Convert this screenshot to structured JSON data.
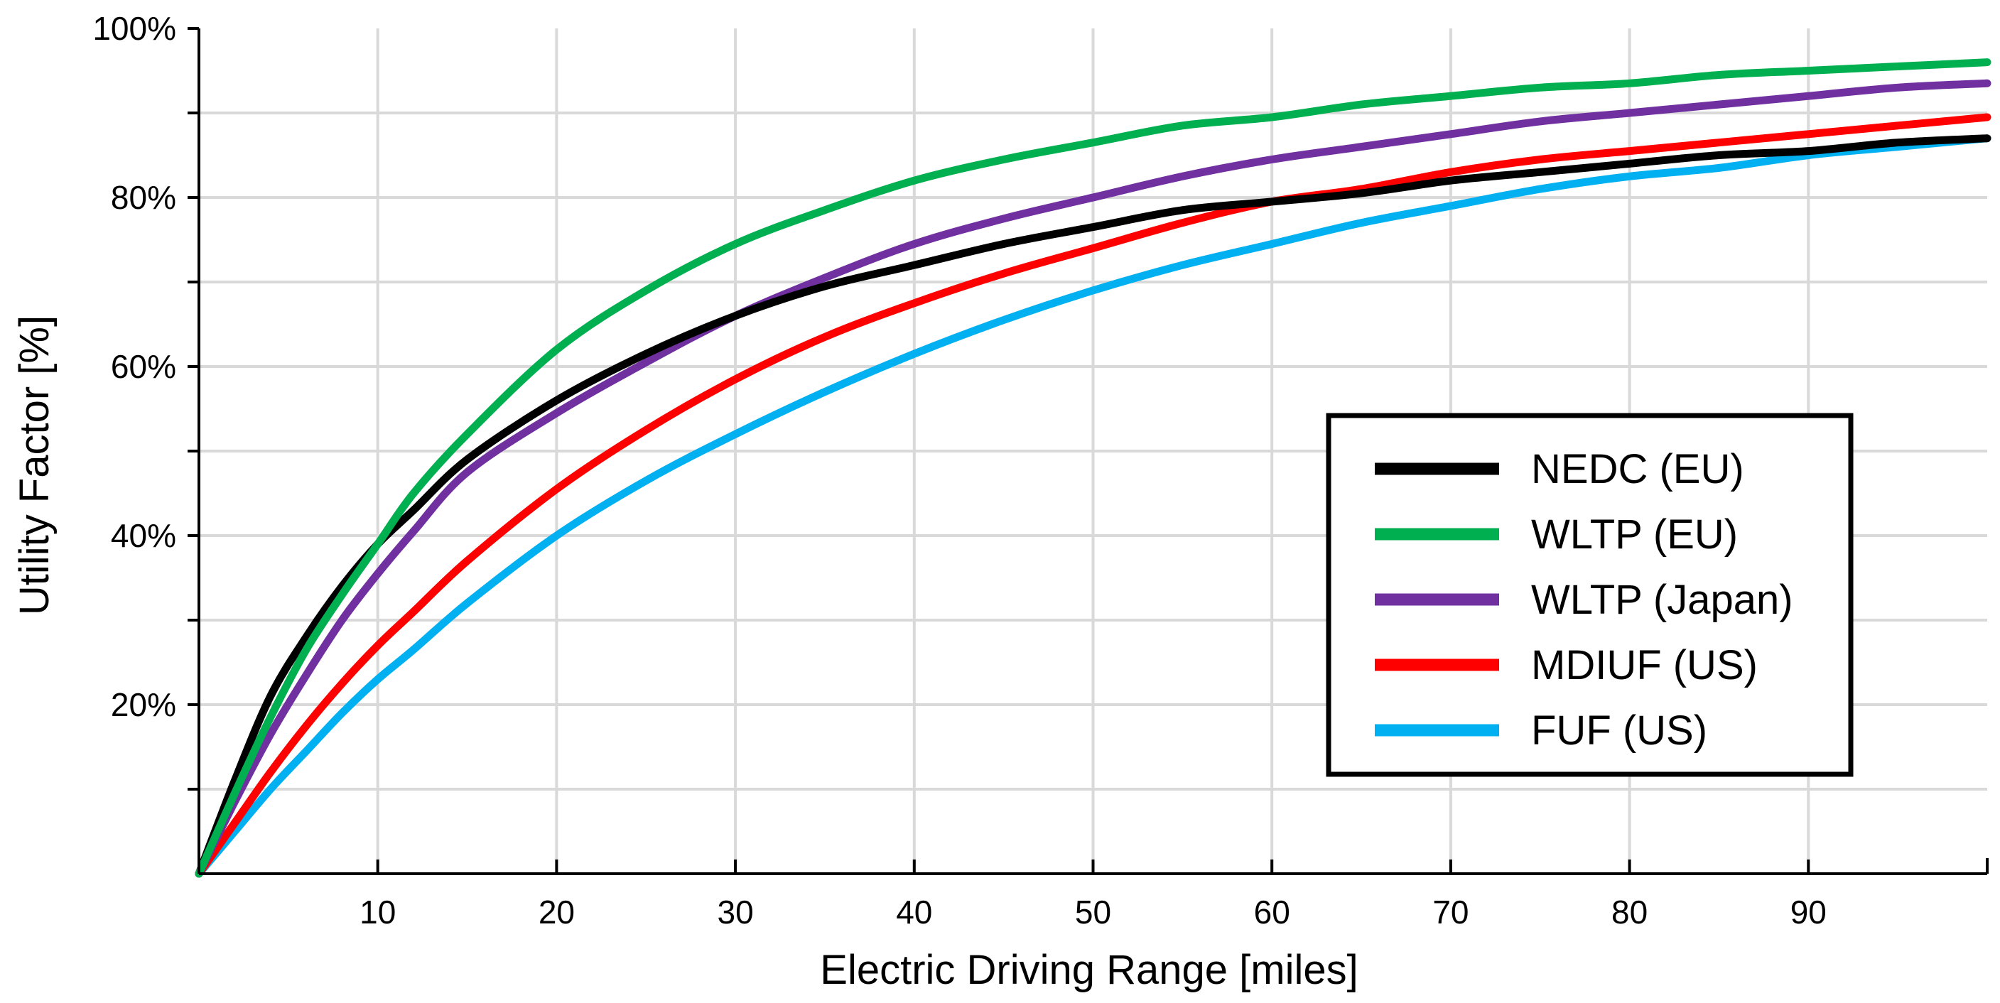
{
  "chart_data": {
    "type": "line",
    "title": "",
    "xlabel": "Electric Driving Range [miles]",
    "ylabel": "Utility Factor [%]",
    "xlim": [
      0,
      100
    ],
    "ylim": [
      0,
      100
    ],
    "grid": true,
    "legend_position": "center-right",
    "x_ticks": [
      10,
      20,
      30,
      40,
      50,
      60,
      70,
      80,
      90
    ],
    "x_tick_labels": [
      "10",
      "20",
      "30",
      "40",
      "50",
      "60",
      "70",
      "80",
      "90"
    ],
    "y_ticks": [
      20,
      40,
      60,
      80,
      100
    ],
    "y_tick_labels": [
      "20%",
      "40%",
      "60%",
      "80%",
      "100%"
    ],
    "x": [
      0,
      2,
      4,
      6,
      8,
      10,
      12,
      15,
      20,
      25,
      30,
      35,
      40,
      45,
      50,
      55,
      60,
      65,
      70,
      75,
      80,
      85,
      90,
      95,
      100
    ],
    "series": [
      {
        "name": "NEDC (EU)",
        "color": "#000000",
        "values": [
          0,
          11,
          21,
          28,
          34,
          39,
          43,
          49,
          56,
          61.5,
          66,
          69.5,
          72,
          74.5,
          76.5,
          78.5,
          79.5,
          80.5,
          82,
          83,
          84,
          85,
          85.5,
          86.5,
          87
        ]
      },
      {
        "name": "WLTP (EU)",
        "color": "#00b050",
        "values": [
          0,
          9.5,
          18.5,
          26.5,
          33,
          39,
          45,
          52,
          62,
          69,
          74.5,
          78.5,
          82,
          84.5,
          86.5,
          88.5,
          89.5,
          91,
          92,
          93,
          93.5,
          94.5,
          95,
          95.5,
          96
        ]
      },
      {
        "name": "WLTP (Japan)",
        "color": "#7030a0",
        "values": [
          0,
          8.5,
          16.5,
          23.5,
          30,
          35.5,
          40.5,
          47.5,
          54.5,
          60.5,
          66,
          70.5,
          74.5,
          77.5,
          80,
          82.5,
          84.5,
          86,
          87.5,
          89,
          90,
          91,
          92,
          93,
          93.5
        ]
      },
      {
        "name": "MDIUF (US)",
        "color": "#ff0000",
        "values": [
          0,
          6,
          12,
          17.5,
          22.5,
          27,
          31,
          37,
          45.5,
          52.5,
          58.5,
          63.5,
          67.5,
          71,
          74,
          77,
          79.5,
          81,
          83,
          84.5,
          85.5,
          86.5,
          87.5,
          88.5,
          89.5
        ]
      },
      {
        "name": "FUF (US)",
        "color": "#00b0f0",
        "values": [
          0,
          5,
          10,
          14.5,
          19,
          23,
          26.5,
          32,
          40,
          46.5,
          52,
          57,
          61.5,
          65.5,
          69,
          72,
          74.5,
          77,
          79,
          81,
          82.5,
          83.5,
          85,
          86,
          87
        ]
      }
    ]
  }
}
